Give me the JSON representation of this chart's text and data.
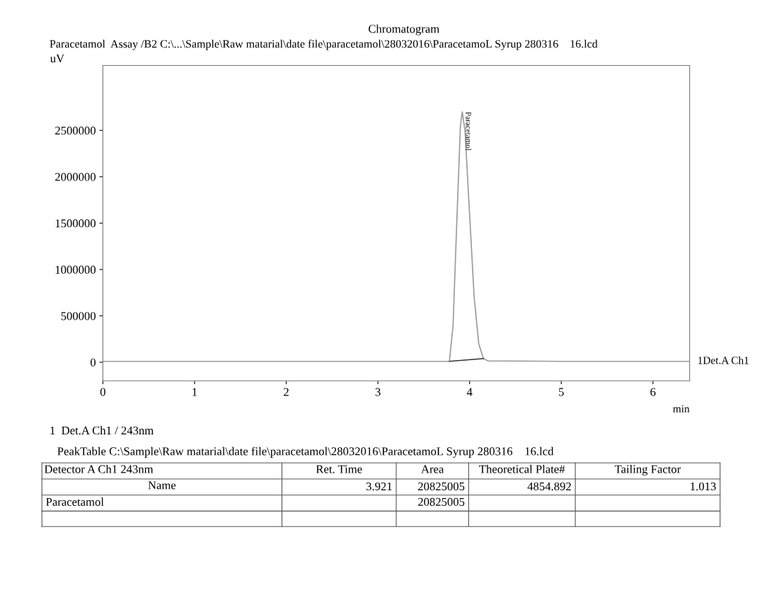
{
  "chart_data": {
    "type": "line",
    "title": "Chromatogram",
    "subtitle": "Paracetamol  Assay /B2 C:\\...\\Sample\\Raw matarial\\date file\\paracetamol\\28032016\\ParacetamoL Syrup 280316    16.lcd",
    "xlabel": "min",
    "ylabel": "uV",
    "xlim": [
      0,
      6.4
    ],
    "xticks": [
      0,
      1,
      2,
      3,
      4,
      5,
      6
    ],
    "ylim": [
      -200000,
      3200000
    ],
    "yticks": [
      0,
      500000,
      1000000,
      1500000,
      2000000,
      2500000
    ],
    "grid": false,
    "marker": "none",
    "line_style": "solid",
    "series": [
      {
        "name": "1Det.A Ch1",
        "color": "#9a9a9a",
        "x": [
          0,
          1,
          2,
          3,
          3.78,
          3.82,
          3.86,
          3.9,
          3.92,
          3.95,
          4.0,
          4.05,
          4.1,
          4.15,
          4.2,
          5,
          6,
          6.4
        ],
        "values": [
          10000,
          10000,
          10000,
          10000,
          10000,
          400000,
          1500000,
          2550000,
          2700000,
          2500000,
          1600000,
          700000,
          200000,
          40000,
          15000,
          10000,
          10000,
          10000
        ]
      },
      {
        "color": "#333333",
        "x": [
          3.78,
          4.15
        ],
        "values": [
          10000,
          40000
        ]
      }
    ],
    "annotations": [
      {
        "text": "Paracetamol",
        "x": 3.92,
        "y": 2700000
      },
      "1  Det.A Ch1 / 243nm",
      "PeakTable C:\\Sample\\Raw matarial\\date file\\paracetamol\\28032016\\ParacetamoL Syrup 280316    16.lcd",
      "Detector A Ch1 243nm",
      "Name",
      "Ret. Time",
      "Area",
      "Theoretical Plate#",
      "Tailing Factor",
      "3.921",
      "20825005",
      "4854.892",
      "1.013",
      "Paracetamol",
      "20825005"
    ]
  }
}
